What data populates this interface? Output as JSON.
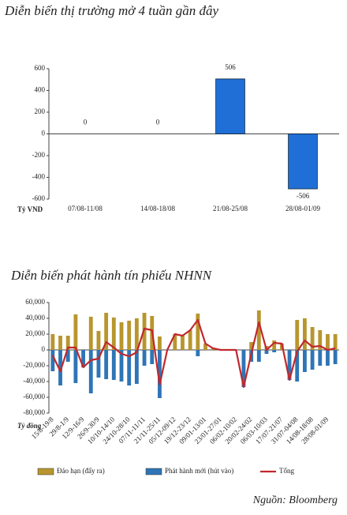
{
  "chart_data": [
    {
      "type": "bar",
      "title": "Diễn biến thị trường mở 4 tuần gần đây",
      "ylabel": "Tỷ VND",
      "categories": [
        "07/08-11/08",
        "14/08-18/08",
        "21/08-25/08",
        "28/08-01/09"
      ],
      "values": [
        0,
        0,
        506,
        -506
      ],
      "color": "#1f6fd6",
      "ylim": [
        -600,
        600
      ],
      "yticks": [
        -600,
        -400,
        -200,
        0,
        200,
        400,
        600
      ],
      "grid": false
    },
    {
      "type": "bar",
      "title": "Diễn biến phát hành tín phiếu NHNN",
      "ylabel": "Tỷ đồng",
      "categories": [
        "15/8-19/8",
        null,
        "29/8-1/9",
        null,
        "12/9-16/9",
        null,
        "26/9-30/9",
        null,
        "10/10-14/10",
        null,
        "24/10-28/10",
        null,
        "07/11-11/11",
        null,
        "21/11-25/11",
        null,
        "05/12-09/12",
        null,
        "19/12-23/12",
        null,
        "09/01-13/01",
        null,
        "23/01-27/01",
        null,
        "06/02-10/02",
        null,
        "20/02-24/02",
        null,
        "06/03-10/03",
        null,
        "17/07-21/07",
        null,
        "31/07-04/08",
        null,
        "14/08-18/08",
        null,
        "28/08-01/09",
        null
      ],
      "series": [
        {
          "name": "Đáo hạn (đẩy ra)",
          "color": "#b8962e",
          "values": [
            20000,
            18000,
            18000,
            45000,
            0,
            42000,
            24000,
            47000,
            41000,
            35000,
            37000,
            40000,
            47000,
            43000,
            17000,
            0,
            20000,
            18000,
            25000,
            46000,
            8000,
            2000,
            0,
            0,
            0,
            0,
            10000,
            50000,
            5000,
            12000,
            8000,
            0,
            38000,
            40000,
            29000,
            25000,
            20000,
            20000
          ]
        },
        {
          "name": "Phát hành mới (hút vào)",
          "color": "#2e75b6",
          "values": [
            -27000,
            -45000,
            -15000,
            -42000,
            -22000,
            -55000,
            -35000,
            -37000,
            -38000,
            -40000,
            -45000,
            -43000,
            -20000,
            -18000,
            -61000,
            0,
            0,
            0,
            0,
            -8000,
            0,
            0,
            0,
            0,
            0,
            -47000,
            -15000,
            -15000,
            -5000,
            -3000,
            0,
            -38000,
            -40000,
            -28000,
            -25000,
            -20000,
            -20000,
            -18000
          ]
        },
        {
          "name": "Tổng",
          "color": "#c0282d",
          "type": "line",
          "values": [
            -7000,
            -27000,
            3000,
            3000,
            -22000,
            -13000,
            -11000,
            10000,
            3000,
            -5000,
            -8000,
            -3000,
            27000,
            25000,
            -44000,
            0,
            20000,
            18000,
            25000,
            38000,
            8000,
            2000,
            0,
            0,
            0,
            -47000,
            -5000,
            35000,
            0,
            9000,
            8000,
            -38000,
            -2000,
            12000,
            4000,
            5000,
            0,
            2000
          ]
        }
      ],
      "ylim": [
        -80000,
        60000
      ],
      "yticks": [
        {
          "value": -80000,
          "label": "-80,000"
        },
        {
          "value": -60000,
          "label": "-60,000"
        },
        {
          "value": -40000,
          "label": "-40,000"
        },
        {
          "value": -20000,
          "label": "-20,000"
        },
        0,
        {
          "value": 20000,
          "label": "20,000"
        },
        {
          "value": 40000,
          "label": "40,000"
        },
        {
          "value": 60000,
          "label": "60,000"
        }
      ],
      "grid": false,
      "legend": "bottom"
    }
  ],
  "source": "Nguồn: Bloomberg"
}
